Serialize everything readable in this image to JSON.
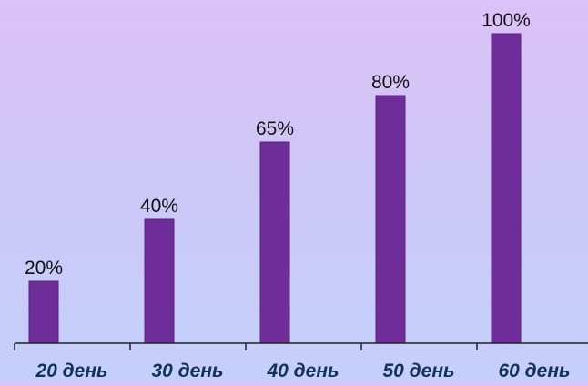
{
  "colors": {
    "bar": "#6e2d98",
    "bar_stroke": "#5a2280",
    "axis": "#222222",
    "value_text": "#111111",
    "category_text": "#12325a",
    "background_top": "#dcc2f6",
    "background_bottom": "#c4d0fb"
  },
  "chart_data": {
    "type": "bar",
    "title": "",
    "xlabel": "",
    "ylabel": "",
    "categories": [
      "20 день",
      "30 день",
      "40 день",
      "50 день",
      "60 день"
    ],
    "values": [
      20,
      40,
      65,
      80,
      100
    ],
    "value_labels": [
      "20%",
      "40%",
      "65%",
      "80%",
      "100%"
    ],
    "ylim": [
      0,
      100
    ],
    "grid": false,
    "legend": "none"
  }
}
